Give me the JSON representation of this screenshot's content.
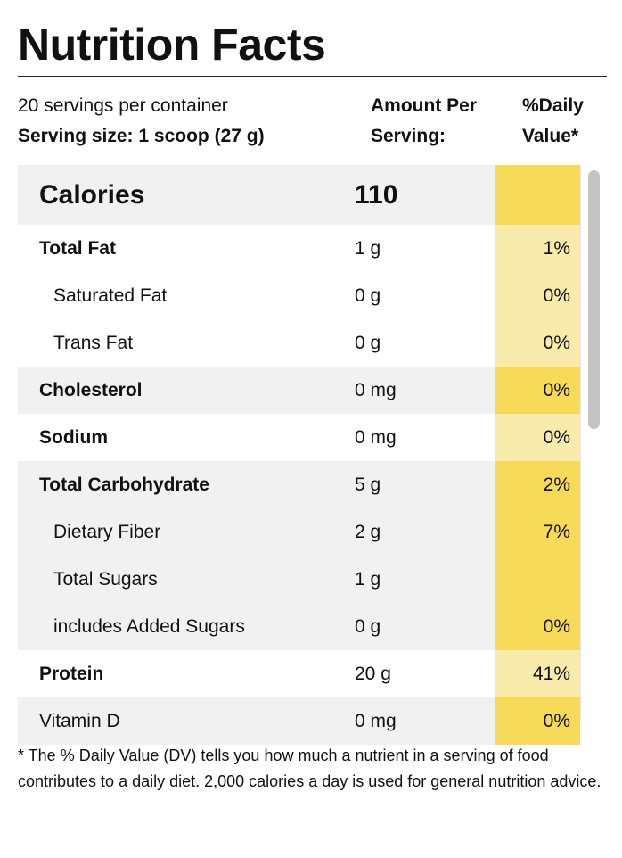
{
  "title": "Nutrition Facts",
  "header": {
    "servings_per_container": "20 servings per container",
    "serving_size": "Serving size: 1 scoop (27 g)",
    "amount_line1": "Amount Per",
    "amount_line2": "Serving:",
    "dv_line1": "%Daily",
    "dv_line2": "Value*"
  },
  "calories": {
    "label": "Calories",
    "value": "110"
  },
  "nutrients": [
    {
      "name": "Total Fat",
      "amount": "1 g",
      "dv": "1%"
    },
    {
      "name": "Saturated Fat",
      "amount": "0 g",
      "dv": "0%"
    },
    {
      "name": "Trans Fat",
      "amount": "0 g",
      "dv": "0%"
    },
    {
      "name": "Cholesterol",
      "amount": "0 mg",
      "dv": "0%"
    },
    {
      "name": "Sodium",
      "amount": "0 mg",
      "dv": "0%"
    },
    {
      "name": "Total Carbohydrate",
      "amount": "5 g",
      "dv": "2%"
    },
    {
      "name": "Dietary Fiber",
      "amount": "2 g",
      "dv": "7%"
    },
    {
      "name": "Total Sugars",
      "amount": "1 g",
      "dv": ""
    },
    {
      "name": "includes Added Sugars",
      "amount": "0 g",
      "dv": "0%"
    },
    {
      "name": "Protein",
      "amount": "20 g",
      "dv": "41%"
    },
    {
      "name": "Vitamin D",
      "amount": "0 mg",
      "dv": "0%"
    }
  ],
  "footnote": "* The % Daily Value (DV) tells you how much a nutrient in a serving of food contributes to a daily diet. 2,000 calories a day is used for general nutrition advice.",
  "colors": {
    "dv_strong": "#f7da58",
    "dv_light": "#f9ebab",
    "row_shade": "#f1f1f1"
  }
}
